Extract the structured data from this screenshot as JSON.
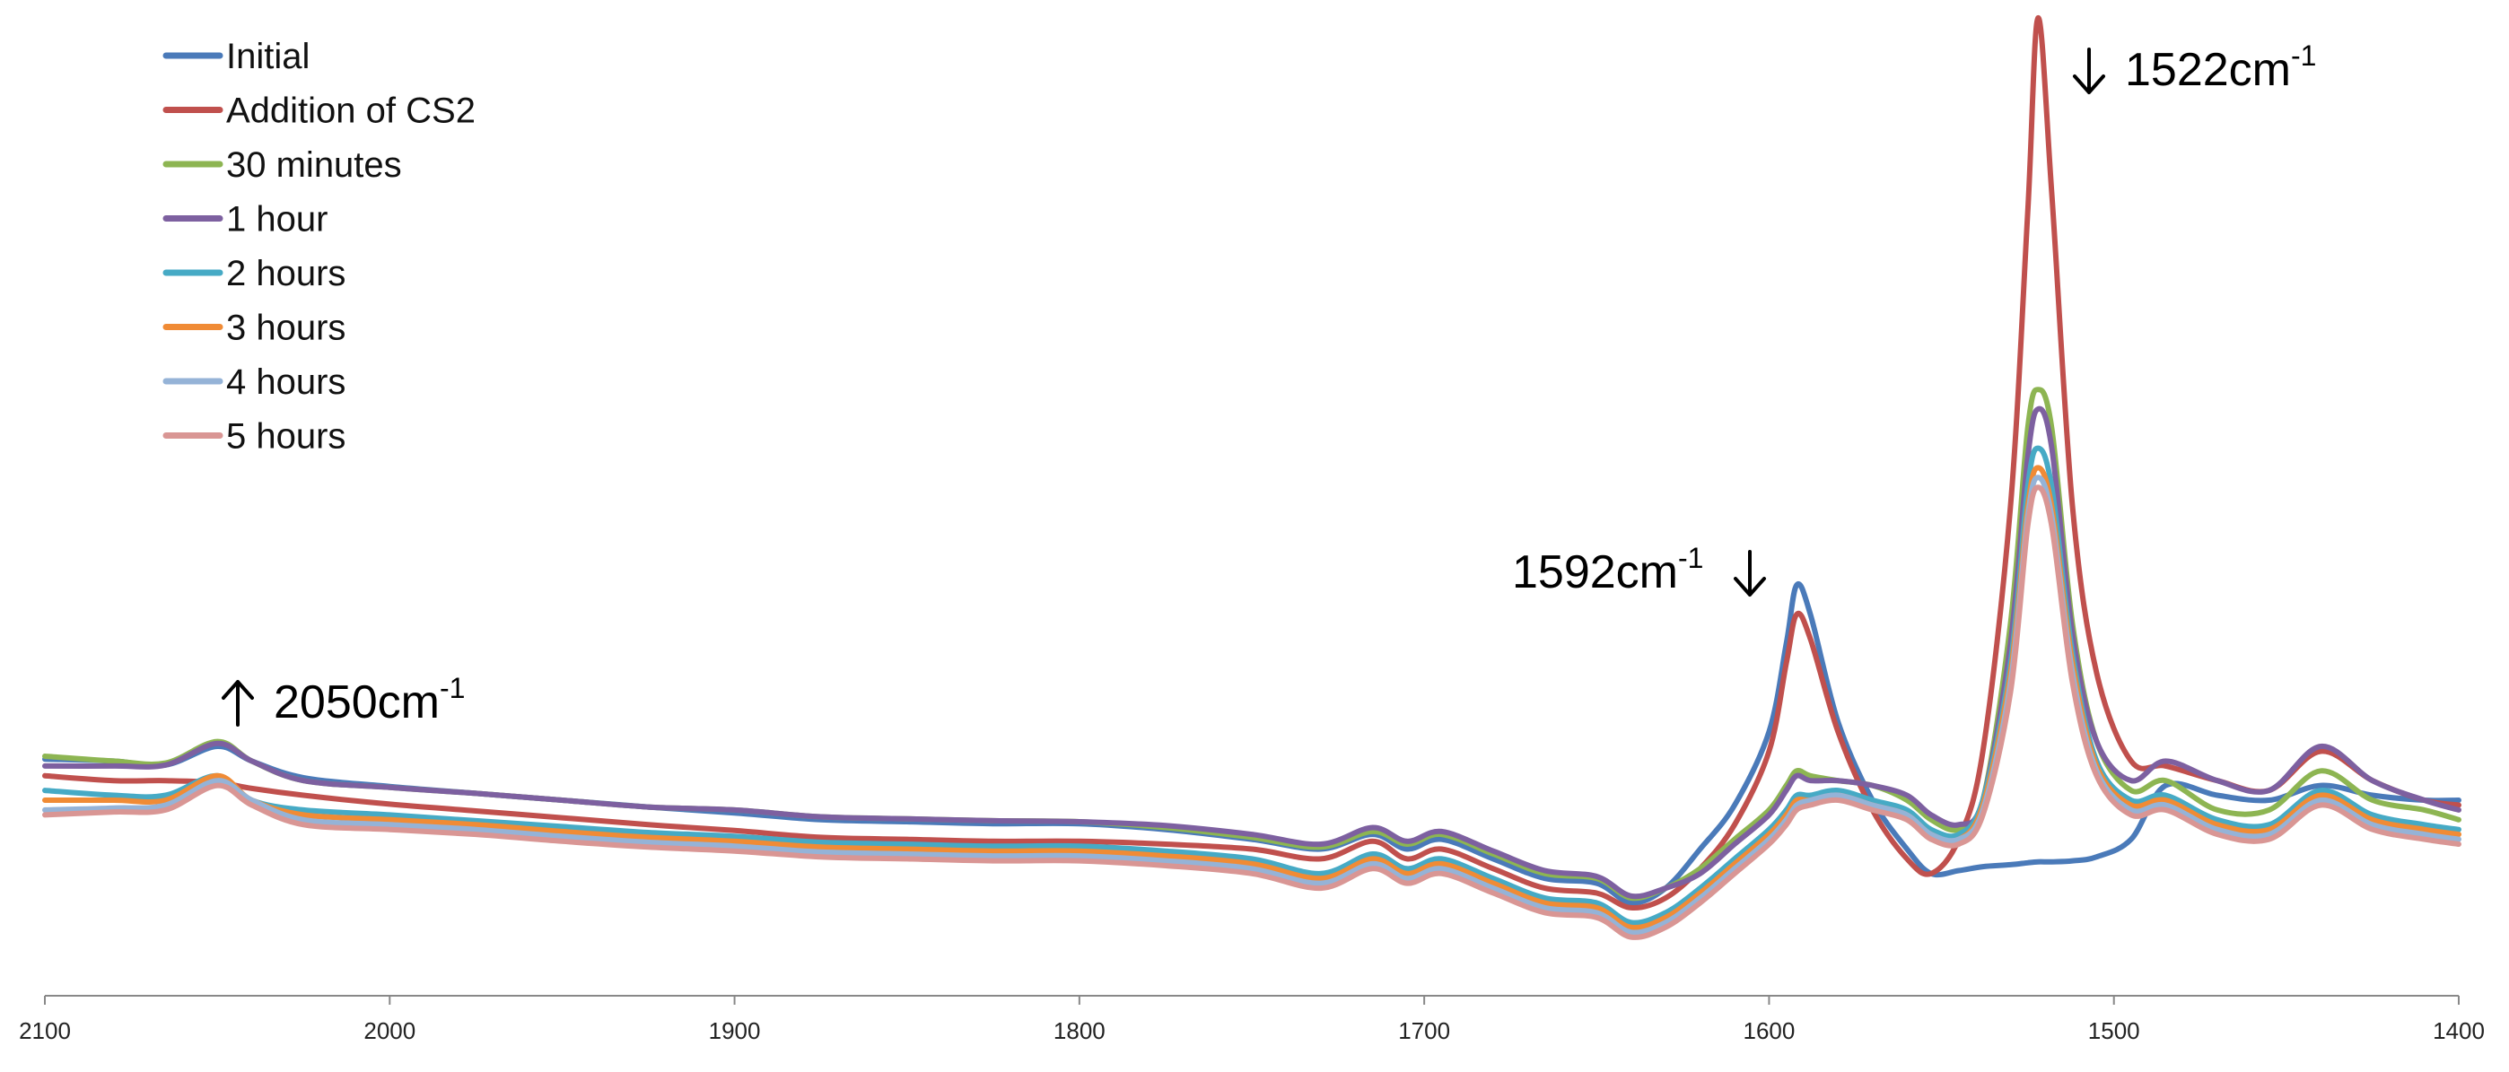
{
  "chart_data": {
    "type": "line",
    "title": "",
    "xlabel": "",
    "ylabel": "",
    "xlim": [
      2100,
      1400
    ],
    "ylim": [
      0,
      1
    ],
    "x_reversed": true,
    "grid": false,
    "legend_placement": "top-left",
    "x_ticks": [
      "2100",
      "2000",
      "1900",
      "1800",
      "1700",
      "1600",
      "1500",
      "1400"
    ],
    "x": [
      2100,
      2080,
      2065,
      2050,
      2040,
      2025,
      2000,
      1975,
      1950,
      1925,
      1900,
      1875,
      1850,
      1825,
      1800,
      1775,
      1750,
      1730,
      1715,
      1705,
      1695,
      1680,
      1665,
      1650,
      1640,
      1630,
      1620,
      1610,
      1600,
      1595,
      1592,
      1588,
      1580,
      1570,
      1560,
      1553,
      1545,
      1538,
      1530,
      1525,
      1522,
      1518,
      1512,
      1505,
      1495,
      1485,
      1470,
      1455,
      1440,
      1425,
      1410,
      1400
    ],
    "series": [
      {
        "name": "Initial",
        "color": "#4a7ab9",
        "values": [
          0.242,
          0.24,
          0.236,
          0.255,
          0.24,
          0.223,
          0.214,
          0.207,
          0.2,
          0.193,
          0.187,
          0.18,
          0.178,
          0.176,
          0.176,
          0.17,
          0.16,
          0.15,
          0.165,
          0.15,
          0.16,
          0.14,
          0.12,
          0.115,
          0.095,
          0.11,
          0.15,
          0.195,
          0.27,
          0.36,
          0.42,
          0.39,
          0.28,
          0.2,
          0.15,
          0.125,
          0.128,
          0.132,
          0.134,
          0.136,
          0.137,
          0.137,
          0.138,
          0.142,
          0.16,
          0.215,
          0.205,
          0.2,
          0.215,
          0.205,
          0.2,
          0.2
        ]
      },
      {
        "name": "Addition of CS2",
        "color": "#c0504d",
        "values": [
          0.225,
          0.22,
          0.22,
          0.218,
          0.212,
          0.205,
          0.196,
          0.189,
          0.182,
          0.175,
          0.169,
          0.162,
          0.16,
          0.158,
          0.158,
          0.155,
          0.15,
          0.14,
          0.158,
          0.14,
          0.15,
          0.13,
          0.11,
          0.105,
          0.09,
          0.1,
          0.13,
          0.175,
          0.25,
          0.34,
          0.39,
          0.365,
          0.27,
          0.19,
          0.14,
          0.125,
          0.16,
          0.25,
          0.5,
          0.8,
          1.0,
          0.82,
          0.5,
          0.33,
          0.24,
          0.235,
          0.22,
          0.21,
          0.25,
          0.22,
          0.2,
          0.195
        ]
      },
      {
        "name": "30 minutes",
        "color": "#8db552",
        "values": [
          0.245,
          0.24,
          0.238,
          0.26,
          0.24,
          0.22,
          0.213,
          0.207,
          0.2,
          0.193,
          0.19,
          0.183,
          0.181,
          0.179,
          0.178,
          0.172,
          0.162,
          0.152,
          0.168,
          0.155,
          0.165,
          0.145,
          0.125,
          0.12,
          0.1,
          0.11,
          0.13,
          0.16,
          0.19,
          0.215,
          0.23,
          0.225,
          0.22,
          0.215,
          0.2,
          0.18,
          0.17,
          0.2,
          0.38,
          0.58,
          0.62,
          0.58,
          0.38,
          0.26,
          0.21,
          0.22,
          0.19,
          0.19,
          0.23,
          0.2,
          0.19,
          0.18
        ]
      },
      {
        "name": "1 hour",
        "color": "#7d60a0",
        "values": [
          0.235,
          0.235,
          0.236,
          0.258,
          0.24,
          0.22,
          0.213,
          0.207,
          0.2,
          0.193,
          0.19,
          0.183,
          0.181,
          0.179,
          0.178,
          0.174,
          0.165,
          0.155,
          0.172,
          0.158,
          0.168,
          0.148,
          0.128,
          0.122,
          0.102,
          0.11,
          0.125,
          0.155,
          0.185,
          0.21,
          0.225,
          0.22,
          0.22,
          0.215,
          0.205,
          0.185,
          0.175,
          0.2,
          0.36,
          0.55,
          0.6,
          0.56,
          0.37,
          0.26,
          0.22,
          0.24,
          0.22,
          0.21,
          0.255,
          0.22,
          0.2,
          0.19
        ]
      },
      {
        "name": "2 hours",
        "color": "#46aac5",
        "values": [
          0.21,
          0.205,
          0.205,
          0.225,
          0.2,
          0.19,
          0.185,
          0.179,
          0.173,
          0.167,
          0.163,
          0.157,
          0.155,
          0.153,
          0.153,
          0.148,
          0.14,
          0.125,
          0.145,
          0.13,
          0.14,
          0.12,
          0.1,
          0.095,
          0.075,
          0.085,
          0.11,
          0.14,
          0.17,
          0.19,
          0.205,
          0.205,
          0.21,
          0.2,
          0.19,
          0.17,
          0.165,
          0.2,
          0.34,
          0.52,
          0.56,
          0.52,
          0.35,
          0.24,
          0.2,
          0.205,
          0.18,
          0.175,
          0.21,
          0.185,
          0.175,
          0.17
        ]
      },
      {
        "name": "3 hours",
        "color": "#f08b35",
        "values": [
          0.2,
          0.2,
          0.2,
          0.225,
          0.2,
          0.185,
          0.18,
          0.175,
          0.168,
          0.162,
          0.158,
          0.152,
          0.15,
          0.148,
          0.148,
          0.143,
          0.135,
          0.12,
          0.14,
          0.125,
          0.135,
          0.115,
          0.095,
          0.09,
          0.07,
          0.08,
          0.105,
          0.135,
          0.165,
          0.185,
          0.2,
          0.2,
          0.205,
          0.195,
          0.185,
          0.165,
          0.16,
          0.195,
          0.33,
          0.5,
          0.54,
          0.5,
          0.34,
          0.235,
          0.195,
          0.2,
          0.175,
          0.17,
          0.205,
          0.18,
          0.17,
          0.165
        ]
      },
      {
        "name": "4 hours",
        "color": "#95b3d7",
        "values": [
          0.19,
          0.192,
          0.195,
          0.22,
          0.2,
          0.18,
          0.175,
          0.17,
          0.163,
          0.157,
          0.153,
          0.147,
          0.145,
          0.143,
          0.143,
          0.138,
          0.13,
          0.115,
          0.135,
          0.12,
          0.13,
          0.11,
          0.09,
          0.085,
          0.065,
          0.075,
          0.1,
          0.13,
          0.16,
          0.18,
          0.195,
          0.2,
          0.205,
          0.195,
          0.185,
          0.165,
          0.16,
          0.19,
          0.32,
          0.49,
          0.53,
          0.49,
          0.33,
          0.23,
          0.19,
          0.195,
          0.17,
          0.165,
          0.2,
          0.175,
          0.165,
          0.16
        ]
      },
      {
        "name": "5 hours",
        "color": "#d99694",
        "values": [
          0.185,
          0.188,
          0.19,
          0.215,
          0.195,
          0.175,
          0.17,
          0.165,
          0.158,
          0.152,
          0.148,
          0.142,
          0.14,
          0.138,
          0.138,
          0.133,
          0.125,
          0.11,
          0.13,
          0.115,
          0.125,
          0.105,
          0.085,
          0.08,
          0.06,
          0.07,
          0.095,
          0.125,
          0.155,
          0.175,
          0.19,
          0.195,
          0.2,
          0.19,
          0.18,
          0.16,
          0.155,
          0.185,
          0.31,
          0.48,
          0.52,
          0.48,
          0.32,
          0.225,
          0.185,
          0.19,
          0.165,
          0.16,
          0.195,
          0.17,
          0.16,
          0.155
        ]
      }
    ],
    "annotations": [
      {
        "id": "a2050",
        "arrow": "↑",
        "number": "2050cm",
        "sup": "-1",
        "x": 2050,
        "arrow_side": "left"
      },
      {
        "id": "a1592",
        "arrow": "↓",
        "number": "1592cm",
        "sup": "-1",
        "x": 1592,
        "arrow_side": "right"
      },
      {
        "id": "a1522",
        "arrow": "↓",
        "number": "1522cm",
        "sup": "-1",
        "x": 1522,
        "arrow_side": "left"
      }
    ]
  }
}
